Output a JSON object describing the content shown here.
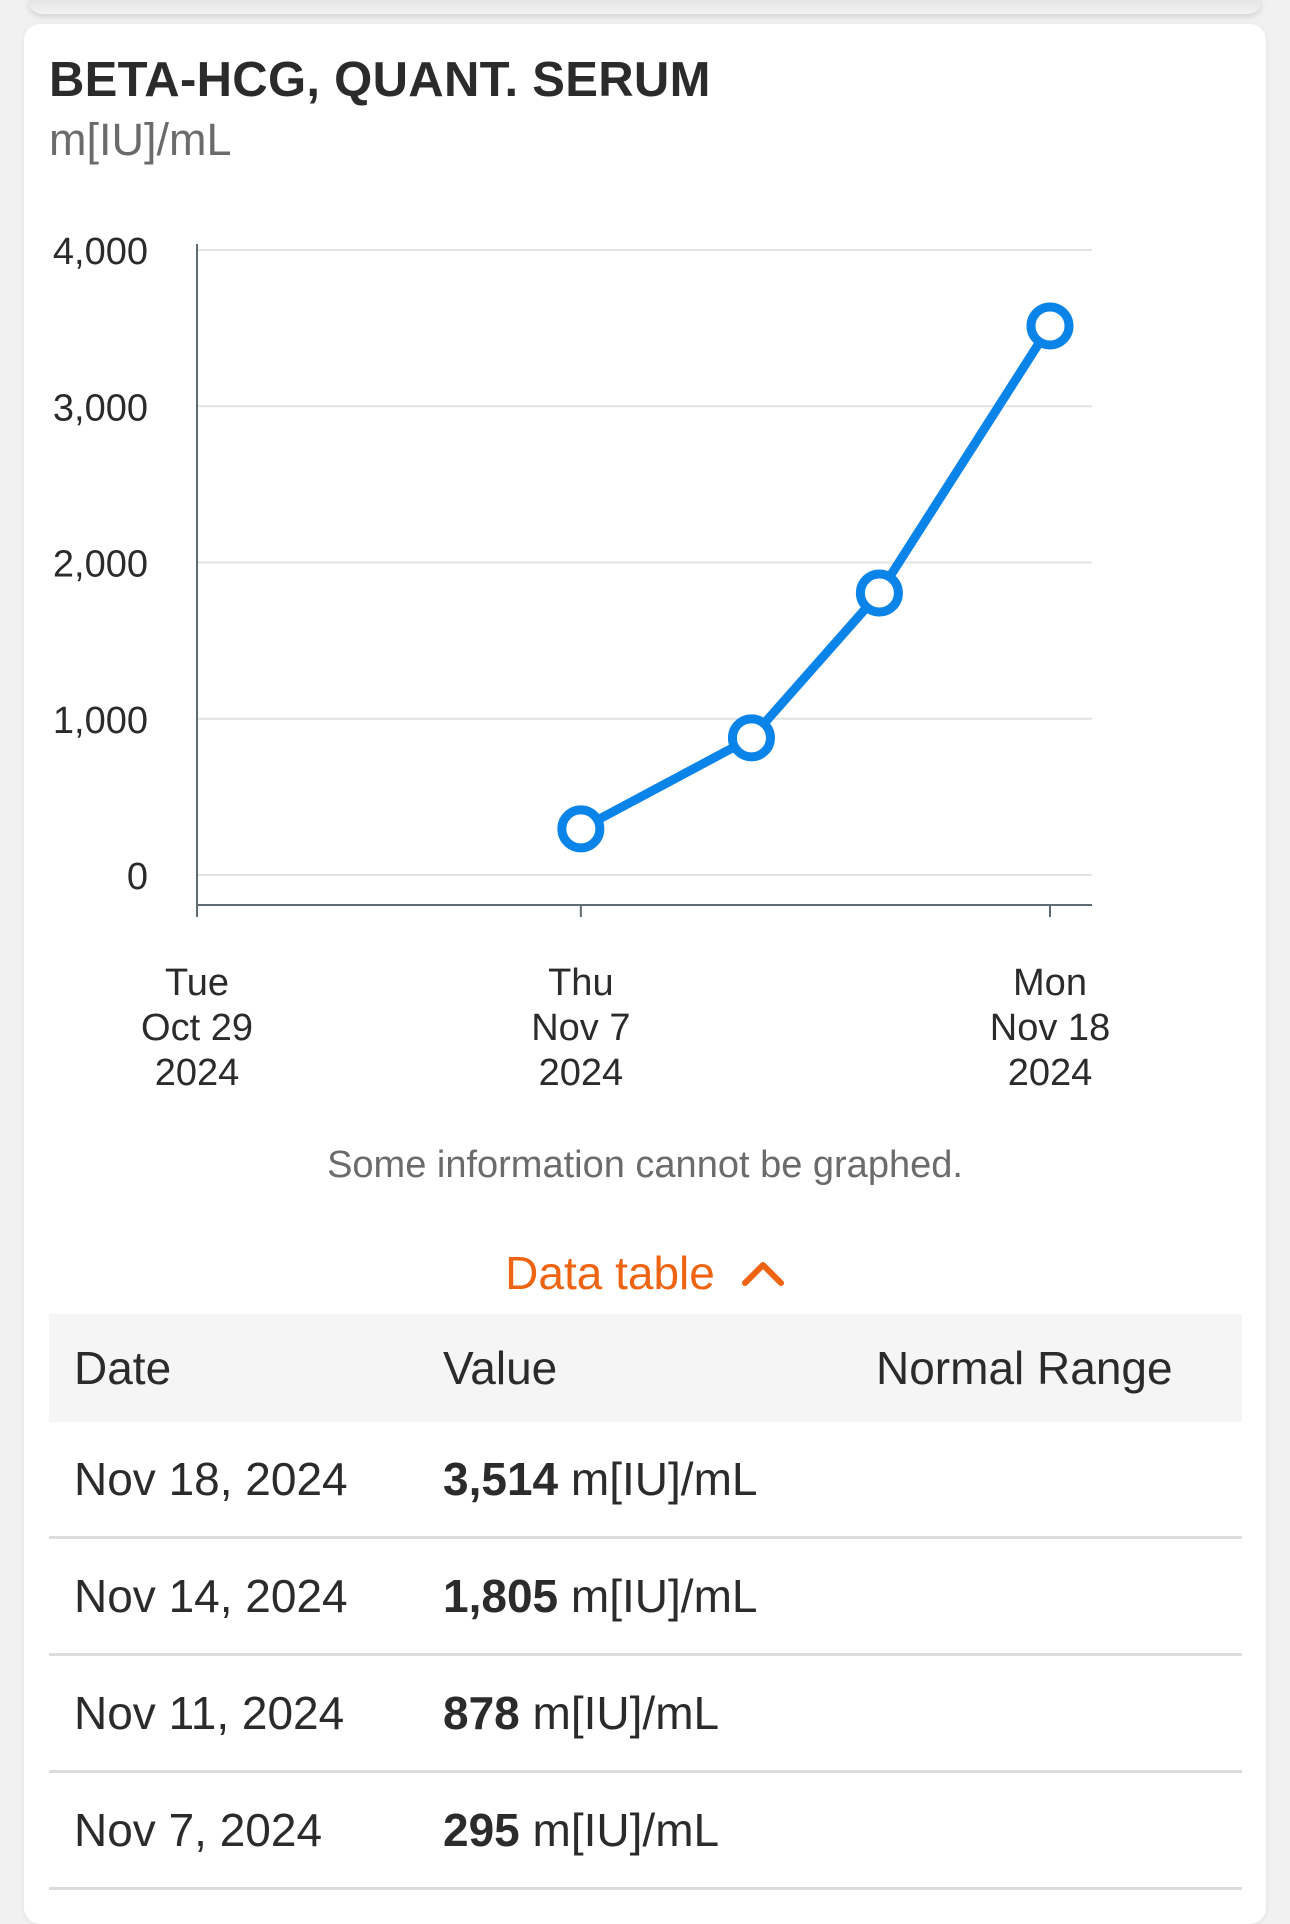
{
  "header": {
    "title": "BETA-HCG, QUANT. SERUM",
    "unit": "m[IU]/mL"
  },
  "chart_data": {
    "type": "line",
    "ylim": [
      0,
      4000
    ],
    "y_ticks": [
      "4,000",
      "3,000",
      "2,000",
      "1,000",
      "0"
    ],
    "x_range": [
      "2024-10-29",
      "2024-11-18"
    ],
    "x_ticks": [
      {
        "date": "2024-10-29",
        "line1": "Tue",
        "line2": "Oct 29",
        "line3": "2024"
      },
      {
        "date": "2024-11-07",
        "line1": "Thu",
        "line2": "Nov 7",
        "line3": "2024"
      },
      {
        "date": "2024-11-18",
        "line1": "Mon",
        "line2": "Nov 18",
        "line3": "2024"
      }
    ],
    "series": [
      {
        "color": "#0a84e8",
        "points": [
          {
            "x": "2024-11-07",
            "y": 295
          },
          {
            "x": "2024-11-11",
            "y": 878
          },
          {
            "x": "2024-11-14",
            "y": 1805
          },
          {
            "x": "2024-11-18",
            "y": 3514
          }
        ]
      }
    ],
    "grid": true
  },
  "note": "Some information cannot be graphed.",
  "data_table": {
    "toggle_label": "Data table",
    "toggle_icon": "chevron-up-icon",
    "accent_color": "#ee6412",
    "headers": {
      "date": "Date",
      "value": "Value",
      "range": "Normal Range"
    },
    "rows": [
      {
        "date": "Nov 18, 2024",
        "value": "3,514",
        "unit": "m[IU]/mL"
      },
      {
        "date": "Nov 14, 2024",
        "value": "1,805",
        "unit": "m[IU]/mL"
      },
      {
        "date": "Nov 11, 2024",
        "value": "878",
        "unit": "m[IU]/mL"
      },
      {
        "date": "Nov 7, 2024",
        "value": "295",
        "unit": "m[IU]/mL"
      }
    ]
  }
}
